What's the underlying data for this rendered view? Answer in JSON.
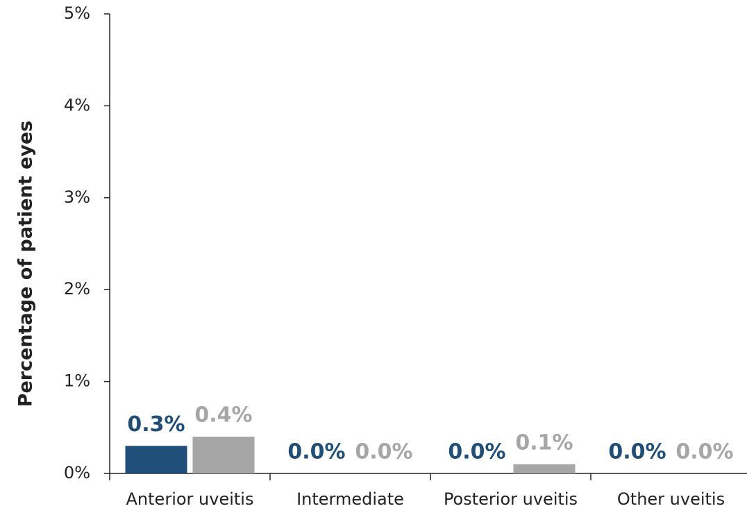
{
  "chart_data": {
    "type": "bar",
    "y_label": "Percentage of patient eyes",
    "categories": [
      "Anterior uveitis",
      "Intermediate",
      "Posterior uveitis",
      "Other uveitis"
    ],
    "series": [
      {
        "color": "#1f4e79",
        "values": [
          0.3,
          0,
          0,
          0
        ],
        "value_labels": [
          "0.3%",
          "0.0%",
          "0.0%",
          "0.0%"
        ]
      },
      {
        "color": "#a6a6a6",
        "values": [
          0.4,
          0,
          0.1,
          0
        ],
        "value_labels": [
          "0.4%",
          "0.0%",
          "0.1%",
          "0.0%"
        ]
      }
    ],
    "ylim": [
      0,
      5
    ],
    "yticks": [
      {
        "value": 0,
        "label": "0%"
      },
      {
        "value": 1,
        "label": "1%"
      },
      {
        "value": 2,
        "label": "2%"
      },
      {
        "value": 3,
        "label": "3%"
      },
      {
        "value": 4,
        "label": "4%"
      },
      {
        "value": 5,
        "label": "5%"
      }
    ]
  }
}
